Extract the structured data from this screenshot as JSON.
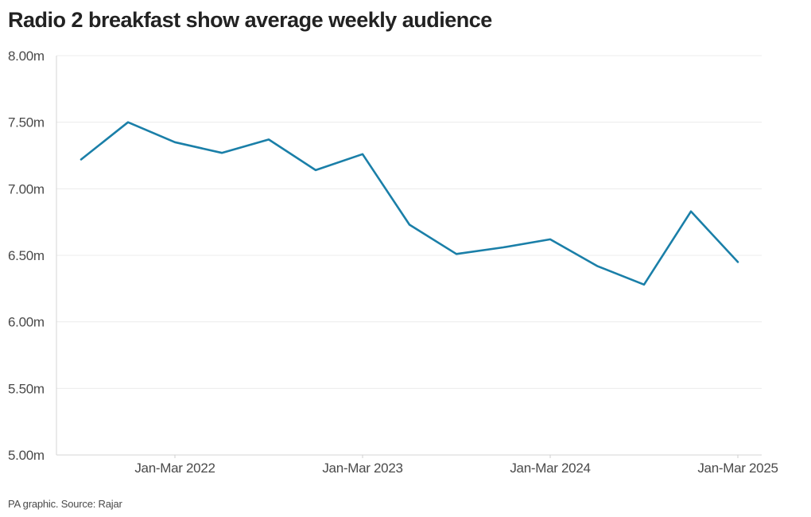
{
  "chart_data": {
    "type": "line",
    "title": "Radio 2 breakfast show average weekly audience",
    "source": "PA graphic. Source: Rajar",
    "xlabel": "",
    "ylabel": "",
    "ylim": [
      5.0,
      8.0
    ],
    "y_ticks": [
      {
        "value": 5.0,
        "label": "5.00m"
      },
      {
        "value": 5.5,
        "label": "5.50m"
      },
      {
        "value": 6.0,
        "label": "6.00m"
      },
      {
        "value": 6.5,
        "label": "6.50m"
      },
      {
        "value": 7.0,
        "label": "7.00m"
      },
      {
        "value": 7.5,
        "label": "7.50m"
      },
      {
        "value": 8.0,
        "label": "8.00m"
      }
    ],
    "x_ticks": [
      {
        "index": 2,
        "label": "Jan-Mar 2022"
      },
      {
        "index": 6,
        "label": "Jan-Mar 2023"
      },
      {
        "index": 10,
        "label": "Jan-Mar 2024"
      },
      {
        "index": 14,
        "label": "Jan-Mar 2025"
      }
    ],
    "grid": true,
    "line_color": "#1a7fa8",
    "series": [
      {
        "values": [
          7.22,
          7.5,
          7.35,
          7.27,
          7.37,
          7.14,
          7.26,
          6.73,
          6.51,
          6.56,
          6.62,
          6.42,
          6.28,
          6.83,
          6.45
        ]
      }
    ]
  }
}
